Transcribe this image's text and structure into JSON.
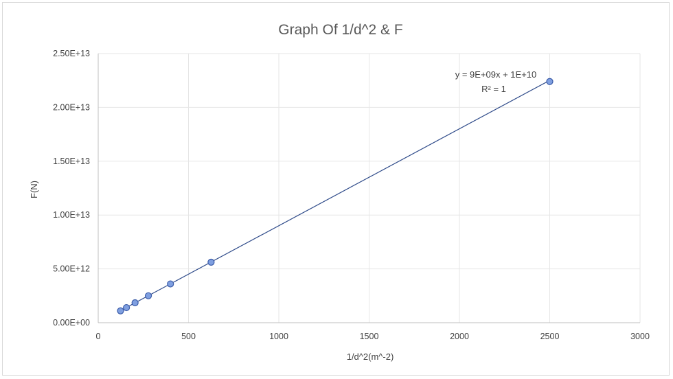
{
  "chart_data": {
    "type": "scatter",
    "title": "Graph Of 1/d^2 & F",
    "xlabel": "1/d^2(m^-2)",
    "ylabel": "F(N)",
    "xlim": [
      0,
      3000
    ],
    "ylim": [
      0,
      25000000000000
    ],
    "x_ticks": [
      0,
      500,
      1000,
      1500,
      2000,
      2500,
      3000
    ],
    "x_tick_labels": [
      "0",
      "500",
      "1000",
      "1500",
      "2000",
      "2500",
      "3000"
    ],
    "y_ticks": [
      0,
      5000000000000,
      10000000000000,
      15000000000000,
      20000000000000,
      25000000000000
    ],
    "y_tick_labels": [
      "0.00E+00",
      "5.00E+12",
      "1.00E+13",
      "1.50E+13",
      "2.00E+13",
      "2.50E+13"
    ],
    "grid": true,
    "series": [
      {
        "x": [
          123.5,
          156.3,
          204.1,
          277.8,
          400,
          625,
          2500
        ],
        "y": [
          1100000000000,
          1400000000000,
          1850000000000,
          2500000000000,
          3600000000000,
          5620000000000,
          22400000000000
        ],
        "color": "#7f9fe0"
      }
    ],
    "trendline": {
      "type": "linear",
      "slope": 9000000000,
      "intercept": 10000000000,
      "equation_label": "y = 9E+09x + 1E+10",
      "r2_label": "R² = 1",
      "color": "#2f4b8a"
    }
  }
}
